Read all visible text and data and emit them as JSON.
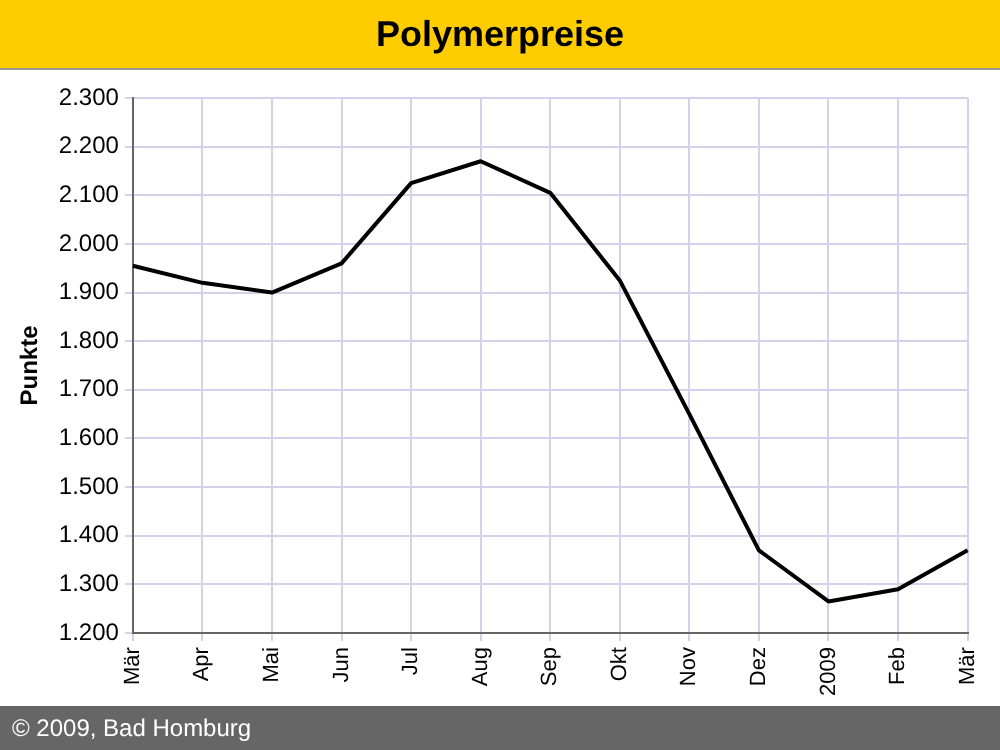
{
  "chart_data": {
    "type": "line",
    "title": "Polymerpreise",
    "ylabel": "Punkte",
    "categories": [
      "Mär",
      "Apr",
      "Mai",
      "Jun",
      "Jul",
      "Aug",
      "Sep",
      "Okt",
      "Nov",
      "Dez",
      "2009",
      "Feb",
      "Mär"
    ],
    "series": [
      {
        "color": "#000000",
        "values": [
          1955,
          1920,
          1900,
          1960,
          2125,
          2170,
          2105,
          1925,
          1650,
          1370,
          1265,
          1290,
          1370
        ]
      }
    ],
    "ylim": [
      1200,
      2300
    ],
    "yticks": [
      {
        "value": 1200,
        "label": "1.200"
      },
      {
        "value": 1300,
        "label": "1.300"
      },
      {
        "value": 1400,
        "label": "1.400"
      },
      {
        "value": 1500,
        "label": "1.500"
      },
      {
        "value": 1600,
        "label": "1.600"
      },
      {
        "value": 1700,
        "label": "1.700"
      },
      {
        "value": 1800,
        "label": "1.800"
      },
      {
        "value": 1900,
        "label": "1.900"
      },
      {
        "value": 2000,
        "label": "2.000"
      },
      {
        "value": 2100,
        "label": "2.100"
      },
      {
        "value": 2200,
        "label": "2.200"
      },
      {
        "value": 2300,
        "label": "2.300"
      }
    ],
    "grid": true,
    "marker": "none",
    "line_style": "solid",
    "annotations": [
      "© 2009, Bad Homburg"
    ]
  }
}
